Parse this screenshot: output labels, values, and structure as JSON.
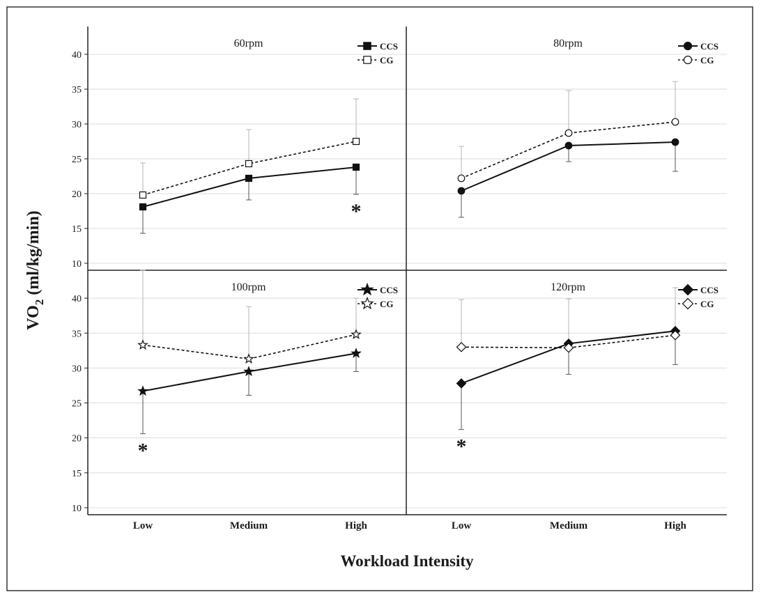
{
  "chart_data": {
    "type": "line",
    "ylabel_main": "VO",
    "ylabel_sub": "2",
    "ylabel_unit": " (ml/kg/min)",
    "xlabel": "Workload Intensity",
    "categories": [
      "Low",
      "Medium",
      "High"
    ],
    "yticks": [
      "10",
      "15",
      "20",
      "25",
      "30",
      "35",
      "40"
    ],
    "ylim": [
      9,
      44
    ],
    "grid": true,
    "legend_position": "top-right",
    "panels": [
      {
        "title": "60rpm",
        "marker": "square",
        "series": [
          {
            "name": "CCS",
            "values": [
              18.1,
              22.2,
              23.8
            ],
            "error": [
              3.8,
              3.1,
              3.9
            ],
            "error_dir": "down"
          },
          {
            "name": "CG",
            "values": [
              19.8,
              24.3,
              27.5
            ],
            "error": [
              4.6,
              4.9,
              6.1
            ],
            "error_dir": "up"
          }
        ],
        "significant": [
          "High"
        ],
        "sig_mark": "*"
      },
      {
        "title": "80rpm",
        "marker": "circle",
        "series": [
          {
            "name": "CCS",
            "values": [
              20.4,
              26.9,
              27.4
            ],
            "error": [
              3.8,
              2.3,
              4.2
            ],
            "error_dir": "down"
          },
          {
            "name": "CG",
            "values": [
              22.2,
              28.7,
              30.3
            ],
            "error": [
              4.6,
              6.1,
              5.8
            ],
            "error_dir": "up"
          }
        ],
        "significant": [],
        "sig_mark": ""
      },
      {
        "title": "100rpm",
        "marker": "star",
        "series": [
          {
            "name": "CCS",
            "values": [
              26.7,
              29.5,
              32.1
            ],
            "error": [
              6.1,
              3.4,
              2.6
            ],
            "error_dir": "down"
          },
          {
            "name": "CG",
            "values": [
              33.3,
              31.3,
              34.8
            ],
            "error": [
              10.7,
              7.5,
              5.2
            ],
            "error_dir": "up"
          }
        ],
        "significant": [
          "Low"
        ],
        "sig_mark": "*"
      },
      {
        "title": "120rpm",
        "marker": "diamond",
        "series": [
          {
            "name": "CCS",
            "values": [
              27.8,
              33.5,
              35.3
            ],
            "error": [
              6.6,
              4.4,
              4.8
            ],
            "error_dir": "down"
          },
          {
            "name": "CG",
            "values": [
              33.0,
              32.9,
              34.7
            ],
            "error": [
              6.8,
              7.0,
              6.8
            ],
            "error_dir": "up"
          }
        ],
        "significant": [
          "Low"
        ],
        "sig_mark": "*"
      }
    ]
  }
}
